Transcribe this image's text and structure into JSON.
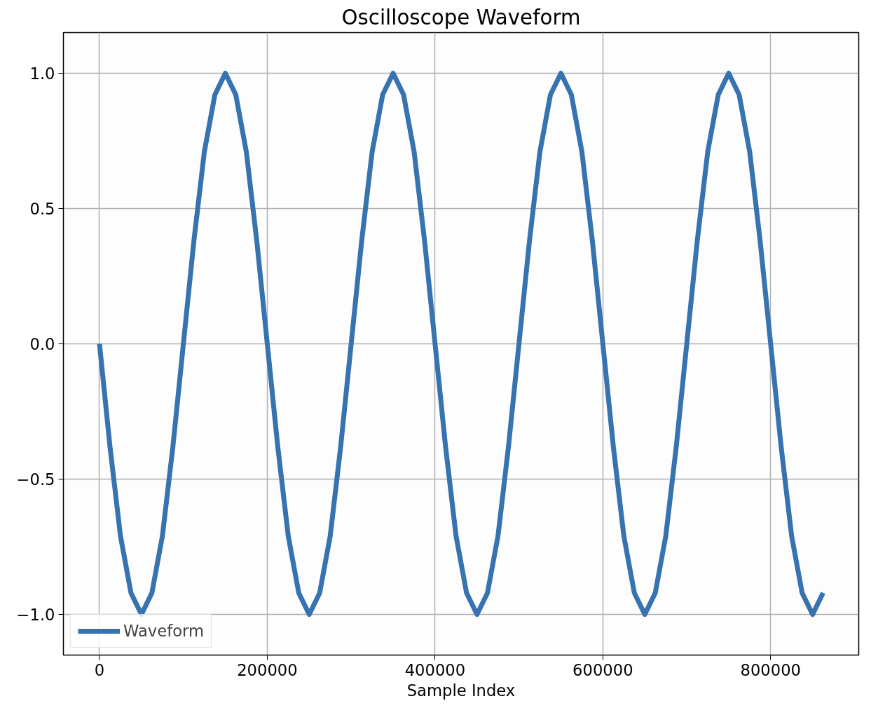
{
  "chart_data": {
    "type": "line",
    "title": "Oscilloscope Waveform",
    "xlabel": "Sample Index",
    "x": [
      0,
      12500,
      25000,
      37500,
      50000,
      62500,
      75000,
      87500,
      100000,
      112500,
      125000,
      137500,
      150000,
      162500,
      175000,
      187500,
      200000,
      212500,
      225000,
      237500,
      250000,
      262500,
      275000,
      287500,
      300000,
      312500,
      325000,
      337500,
      350000,
      362500,
      375000,
      387500,
      400000,
      412500,
      425000,
      437500,
      450000,
      462500,
      475000,
      487500,
      500000,
      512500,
      525000,
      537500,
      550000,
      562500,
      575000,
      587500,
      600000,
      612500,
      625000,
      637500,
      650000,
      662500,
      675000,
      687500,
      700000,
      712500,
      725000,
      737500,
      750000,
      762500,
      775000,
      787500,
      800000,
      812500,
      825000,
      837500,
      850000,
      862500
    ],
    "series": [
      {
        "name": "Waveform",
        "color": "#3673b0",
        "values": [
          0,
          -0.38,
          -0.71,
          -0.92,
          -1.0,
          -0.92,
          -0.71,
          -0.38,
          0,
          0.38,
          0.71,
          0.92,
          1.0,
          0.92,
          0.71,
          0.38,
          0,
          -0.38,
          -0.71,
          -0.92,
          -1.0,
          -0.92,
          -0.71,
          -0.38,
          0,
          0.38,
          0.71,
          0.92,
          1.0,
          0.92,
          0.71,
          0.38,
          0,
          -0.38,
          -0.71,
          -0.92,
          -1.0,
          -0.92,
          -0.71,
          -0.38,
          0,
          0.38,
          0.71,
          0.92,
          1.0,
          0.92,
          0.71,
          0.38,
          0,
          -0.38,
          -0.71,
          -0.92,
          -1.0,
          -0.92,
          -0.71,
          -0.38,
          0,
          0.38,
          0.71,
          0.92,
          1.0,
          0.92,
          0.71,
          0.38,
          0,
          -0.38,
          -0.71,
          -0.92,
          -1.0,
          -0.92
        ]
      }
    ],
    "xlim": [
      -43000,
      905000
    ],
    "ylim": [
      -1.15,
      1.15
    ],
    "xticks": [
      0,
      200000,
      400000,
      600000,
      800000
    ],
    "yticks": [
      {
        "value": -1.0,
        "label": "−1.0"
      },
      {
        "value": -0.5,
        "label": "−0.5"
      },
      {
        "value": 0.0,
        "label": "0.0"
      },
      {
        "value": 0.5,
        "label": "0.5"
      },
      {
        "value": 1.0,
        "label": "1.0"
      }
    ],
    "grid": true,
    "legend": "bottom left",
    "line_style": "solid"
  }
}
